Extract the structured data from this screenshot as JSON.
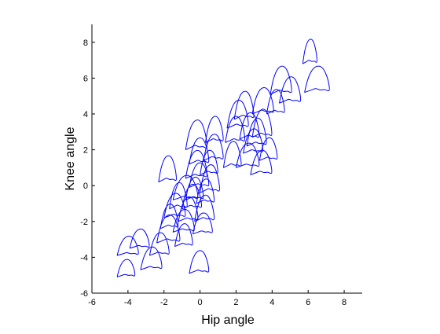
{
  "chart_data": {
    "type": "line",
    "title": "",
    "xlabel": "Hip angle",
    "ylabel": "Knee angle",
    "xlim": [
      -6,
      9
    ],
    "ylim": [
      -6,
      9
    ],
    "x_ticks": [
      -6,
      -4,
      -2,
      0,
      2,
      4,
      6,
      8
    ],
    "y_ticks": [
      -6,
      -4,
      -2,
      0,
      2,
      4,
      6,
      8
    ],
    "grid": false,
    "legend": "none",
    "colors": {
      "series": "#0000ff",
      "axis": "#000000",
      "background": "#ffffff"
    },
    "series": [
      {
        "loop_shape": {
          "u": [
            0,
            0.08,
            0.2,
            0.36,
            0.55,
            0.72,
            0.84,
            0.95,
            1.0,
            0.93,
            0.8,
            0.62,
            0.45,
            0.3,
            0.15,
            0.05,
            0
          ],
          "v": [
            0,
            0.35,
            0.68,
            0.92,
            1.0,
            0.92,
            0.72,
            0.42,
            0.08,
            0.05,
            0.12,
            0.08,
            0.16,
            0.1,
            0.05,
            0.02,
            0
          ]
        },
        "loops": [
          {
            "x": -4.6,
            "y": -5.1,
            "w": 1.0,
            "h": 1.0
          },
          {
            "x": -4.6,
            "y": -3.9,
            "w": 1.2,
            "h": 1.1
          },
          {
            "x": -3.9,
            "y": -3.5,
            "w": 1.1,
            "h": 1.1
          },
          {
            "x": -3.3,
            "y": -4.7,
            "w": 1.2,
            "h": 1.3
          },
          {
            "x": -2.8,
            "y": -3.9,
            "w": 1.1,
            "h": 1.3
          },
          {
            "x": -2.4,
            "y": -3.2,
            "w": 1.3,
            "h": 1.6
          },
          {
            "x": -2.2,
            "y": -2.4,
            "w": 1.0,
            "h": 1.4
          },
          {
            "x": -2.0,
            "y": -1.8,
            "w": 1.2,
            "h": 1.4
          },
          {
            "x": -1.7,
            "y": -1.3,
            "w": 1.0,
            "h": 1.5
          },
          {
            "x": -1.5,
            "y": -0.8,
            "w": 1.4,
            "h": 1.4
          },
          {
            "x": -2.3,
            "y": 0.2,
            "w": 1.0,
            "h": 1.5
          },
          {
            "x": -1.4,
            "y": -3.4,
            "w": 1.0,
            "h": 1.3
          },
          {
            "x": -1.5,
            "y": -2.6,
            "w": 1.2,
            "h": 1.3
          },
          {
            "x": -1.2,
            "y": -2.0,
            "w": 1.1,
            "h": 1.4
          },
          {
            "x": -1.0,
            "y": -1.3,
            "w": 1.1,
            "h": 1.4
          },
          {
            "x": -0.8,
            "y": -0.8,
            "w": 1.0,
            "h": 1.3
          },
          {
            "x": -0.6,
            "y": -0.1,
            "w": 1.1,
            "h": 1.4
          },
          {
            "x": -0.8,
            "y": 0.4,
            "w": 1.2,
            "h": 1.6
          },
          {
            "x": -0.6,
            "y": 1.2,
            "w": 1.1,
            "h": 1.5
          },
          {
            "x": -0.8,
            "y": 2.0,
            "w": 1.2,
            "h": 1.7
          },
          {
            "x": -0.4,
            "y": -2.7,
            "w": 1.1,
            "h": 1.2
          },
          {
            "x": -0.3,
            "y": -2.0,
            "w": 1.1,
            "h": 1.5
          },
          {
            "x": -0.2,
            "y": -1.0,
            "w": 1.0,
            "h": 1.4
          },
          {
            "x": 0.0,
            "y": -0.4,
            "w": 1.1,
            "h": 1.6
          },
          {
            "x": 0.0,
            "y": 0.6,
            "w": 1.0,
            "h": 1.4
          },
          {
            "x": 0.2,
            "y": 1.4,
            "w": 1.1,
            "h": 1.5
          },
          {
            "x": 0.3,
            "y": 2.4,
            "w": 1.0,
            "h": 1.5
          },
          {
            "x": -0.6,
            "y": -4.9,
            "w": 1.1,
            "h": 1.3
          },
          {
            "x": 1.3,
            "y": 1.0,
            "w": 1.0,
            "h": 1.5
          },
          {
            "x": 1.4,
            "y": 2.4,
            "w": 1.1,
            "h": 1.5
          },
          {
            "x": 1.5,
            "y": 3.2,
            "w": 1.2,
            "h": 1.6
          },
          {
            "x": 1.9,
            "y": 3.7,
            "w": 1.1,
            "h": 1.6
          },
          {
            "x": 2.2,
            "y": 2.6,
            "w": 1.1,
            "h": 1.5
          },
          {
            "x": 2.4,
            "y": 1.8,
            "w": 1.1,
            "h": 1.4
          },
          {
            "x": 2.0,
            "y": 1.0,
            "w": 1.3,
            "h": 1.4
          },
          {
            "x": 2.8,
            "y": 0.6,
            "w": 1.2,
            "h": 1.4
          },
          {
            "x": 2.6,
            "y": 2.2,
            "w": 1.1,
            "h": 1.6
          },
          {
            "x": 2.9,
            "y": 2.7,
            "w": 1.1,
            "h": 1.6
          },
          {
            "x": 2.9,
            "y": 4.0,
            "w": 1.2,
            "h": 1.5
          },
          {
            "x": 3.3,
            "y": 1.4,
            "w": 1.0,
            "h": 1.3
          },
          {
            "x": 3.7,
            "y": 4.0,
            "w": 1.0,
            "h": 1.4
          },
          {
            "x": 3.9,
            "y": 5.1,
            "w": 1.2,
            "h": 1.6
          },
          {
            "x": 4.4,
            "y": 4.6,
            "w": 1.2,
            "h": 1.5
          },
          {
            "x": 5.8,
            "y": 5.2,
            "w": 1.4,
            "h": 1.5
          },
          {
            "x": 5.7,
            "y": 6.8,
            "w": 0.8,
            "h": 1.4
          }
        ]
      }
    ]
  }
}
